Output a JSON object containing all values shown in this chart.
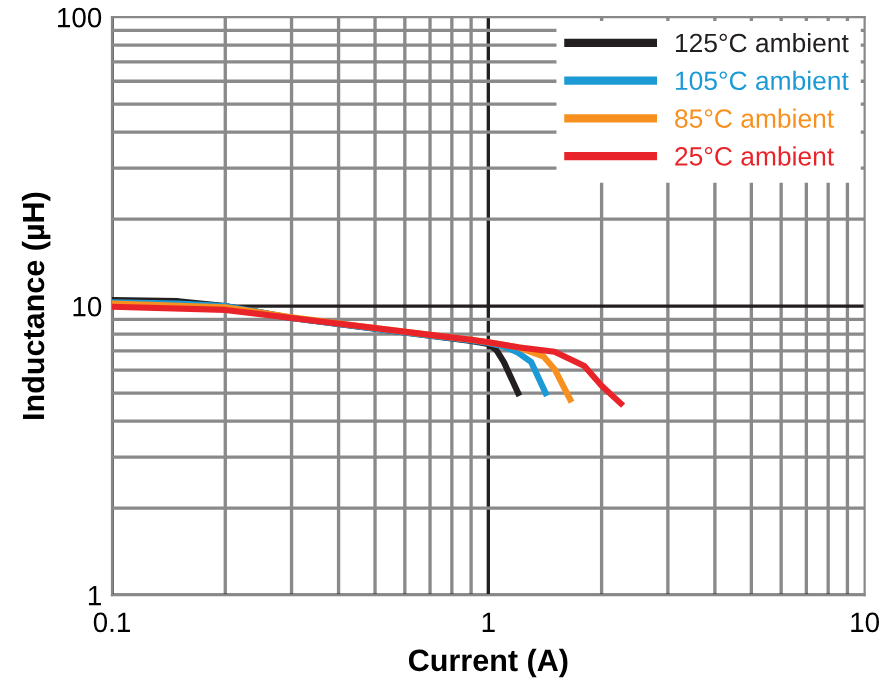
{
  "chart_data": {
    "type": "line",
    "xlabel": "Current (A)",
    "ylabel": "Inductance (µH)",
    "log": "xy",
    "xlim": [
      0.1,
      10
    ],
    "ylim": [
      1,
      100
    ],
    "xticks": [
      0.1,
      1,
      10
    ],
    "yticks": [
      1,
      10,
      100
    ],
    "grid": true,
    "legend": "top right",
    "line_style": "solid",
    "marker": "none",
    "series": [
      {
        "name": "125°C ambient",
        "color": "#231f20",
        "x": [
          0.1,
          0.15,
          0.2,
          0.3,
          0.5,
          0.7,
          0.9,
          1.0,
          1.05,
          1.1,
          1.2
        ],
        "values": [
          10.5,
          10.4,
          10.0,
          9.1,
          8.35,
          7.9,
          7.57,
          7.4,
          7.05,
          6.4,
          5.0
        ]
      },
      {
        "name": "105°C ambient",
        "color": "#1b9ad6",
        "x": [
          0.1,
          0.15,
          0.2,
          0.3,
          0.5,
          0.7,
          0.9,
          1.0,
          1.1,
          1.2,
          1.3,
          1.42
        ],
        "values": [
          10.3,
          10.2,
          10.0,
          9.1,
          8.35,
          7.9,
          7.6,
          7.45,
          7.25,
          6.9,
          6.4,
          5.0
        ]
      },
      {
        "name": "85°C ambient",
        "color": "#f7901e",
        "x": [
          0.1,
          0.2,
          0.3,
          0.5,
          0.7,
          0.9,
          1.0,
          1.2,
          1.4,
          1.5,
          1.65
        ],
        "values": [
          10.2,
          9.9,
          9.15,
          8.4,
          7.95,
          7.65,
          7.5,
          7.2,
          6.7,
          6.05,
          4.75
        ]
      },
      {
        "name": "25°C ambient",
        "color": "#e8242a",
        "x": [
          0.1,
          0.2,
          0.3,
          0.5,
          0.7,
          0.9,
          1.0,
          1.2,
          1.5,
          1.8,
          2.0,
          2.25
        ],
        "values": [
          9.95,
          9.7,
          9.1,
          8.4,
          7.95,
          7.65,
          7.5,
          7.2,
          6.95,
          6.2,
          5.3,
          4.6
        ]
      }
    ]
  }
}
